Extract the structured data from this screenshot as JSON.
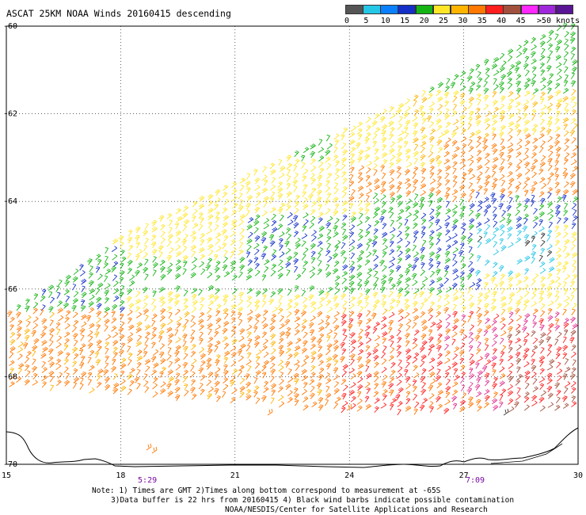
{
  "title": "ASCAT 25KM NOAA Winds 20160415 descending",
  "legend": {
    "unit": ">50 knots",
    "tick_labels": [
      "0",
      "5",
      "10",
      "15",
      "20",
      "25",
      "30",
      "35",
      "40",
      "45"
    ],
    "colors": [
      "#555555",
      "#26c6e6",
      "#0a80ff",
      "#1430c8",
      "#14b414",
      "#ffe628",
      "#ffb400",
      "#ff7800",
      "#ff1e1e",
      "#a0503c",
      "#ff28ff",
      "#a028dc",
      "#5a1496"
    ]
  },
  "axes": {
    "x_ticks": [
      "15",
      "18",
      "21",
      "24",
      "27",
      "30"
    ],
    "y_ticks": [
      "-60",
      "-62",
      "-64",
      "-66",
      "-68",
      "-70"
    ]
  },
  "times": [
    {
      "label": "5:29",
      "lon": 18.7
    },
    {
      "label": "7:09",
      "lon": 27.3
    }
  ],
  "notes": {
    "line1": "Note: 1) Times are GMT 2)Times along bottom correspond to measurement at -65S",
    "line2": "3)Data buffer is 22 hrs from 20160415 4) Black wind barbs indicate possible contamination",
    "line3": "NOAA/NESDIS/Center for Satellite Applications and Research"
  }
}
